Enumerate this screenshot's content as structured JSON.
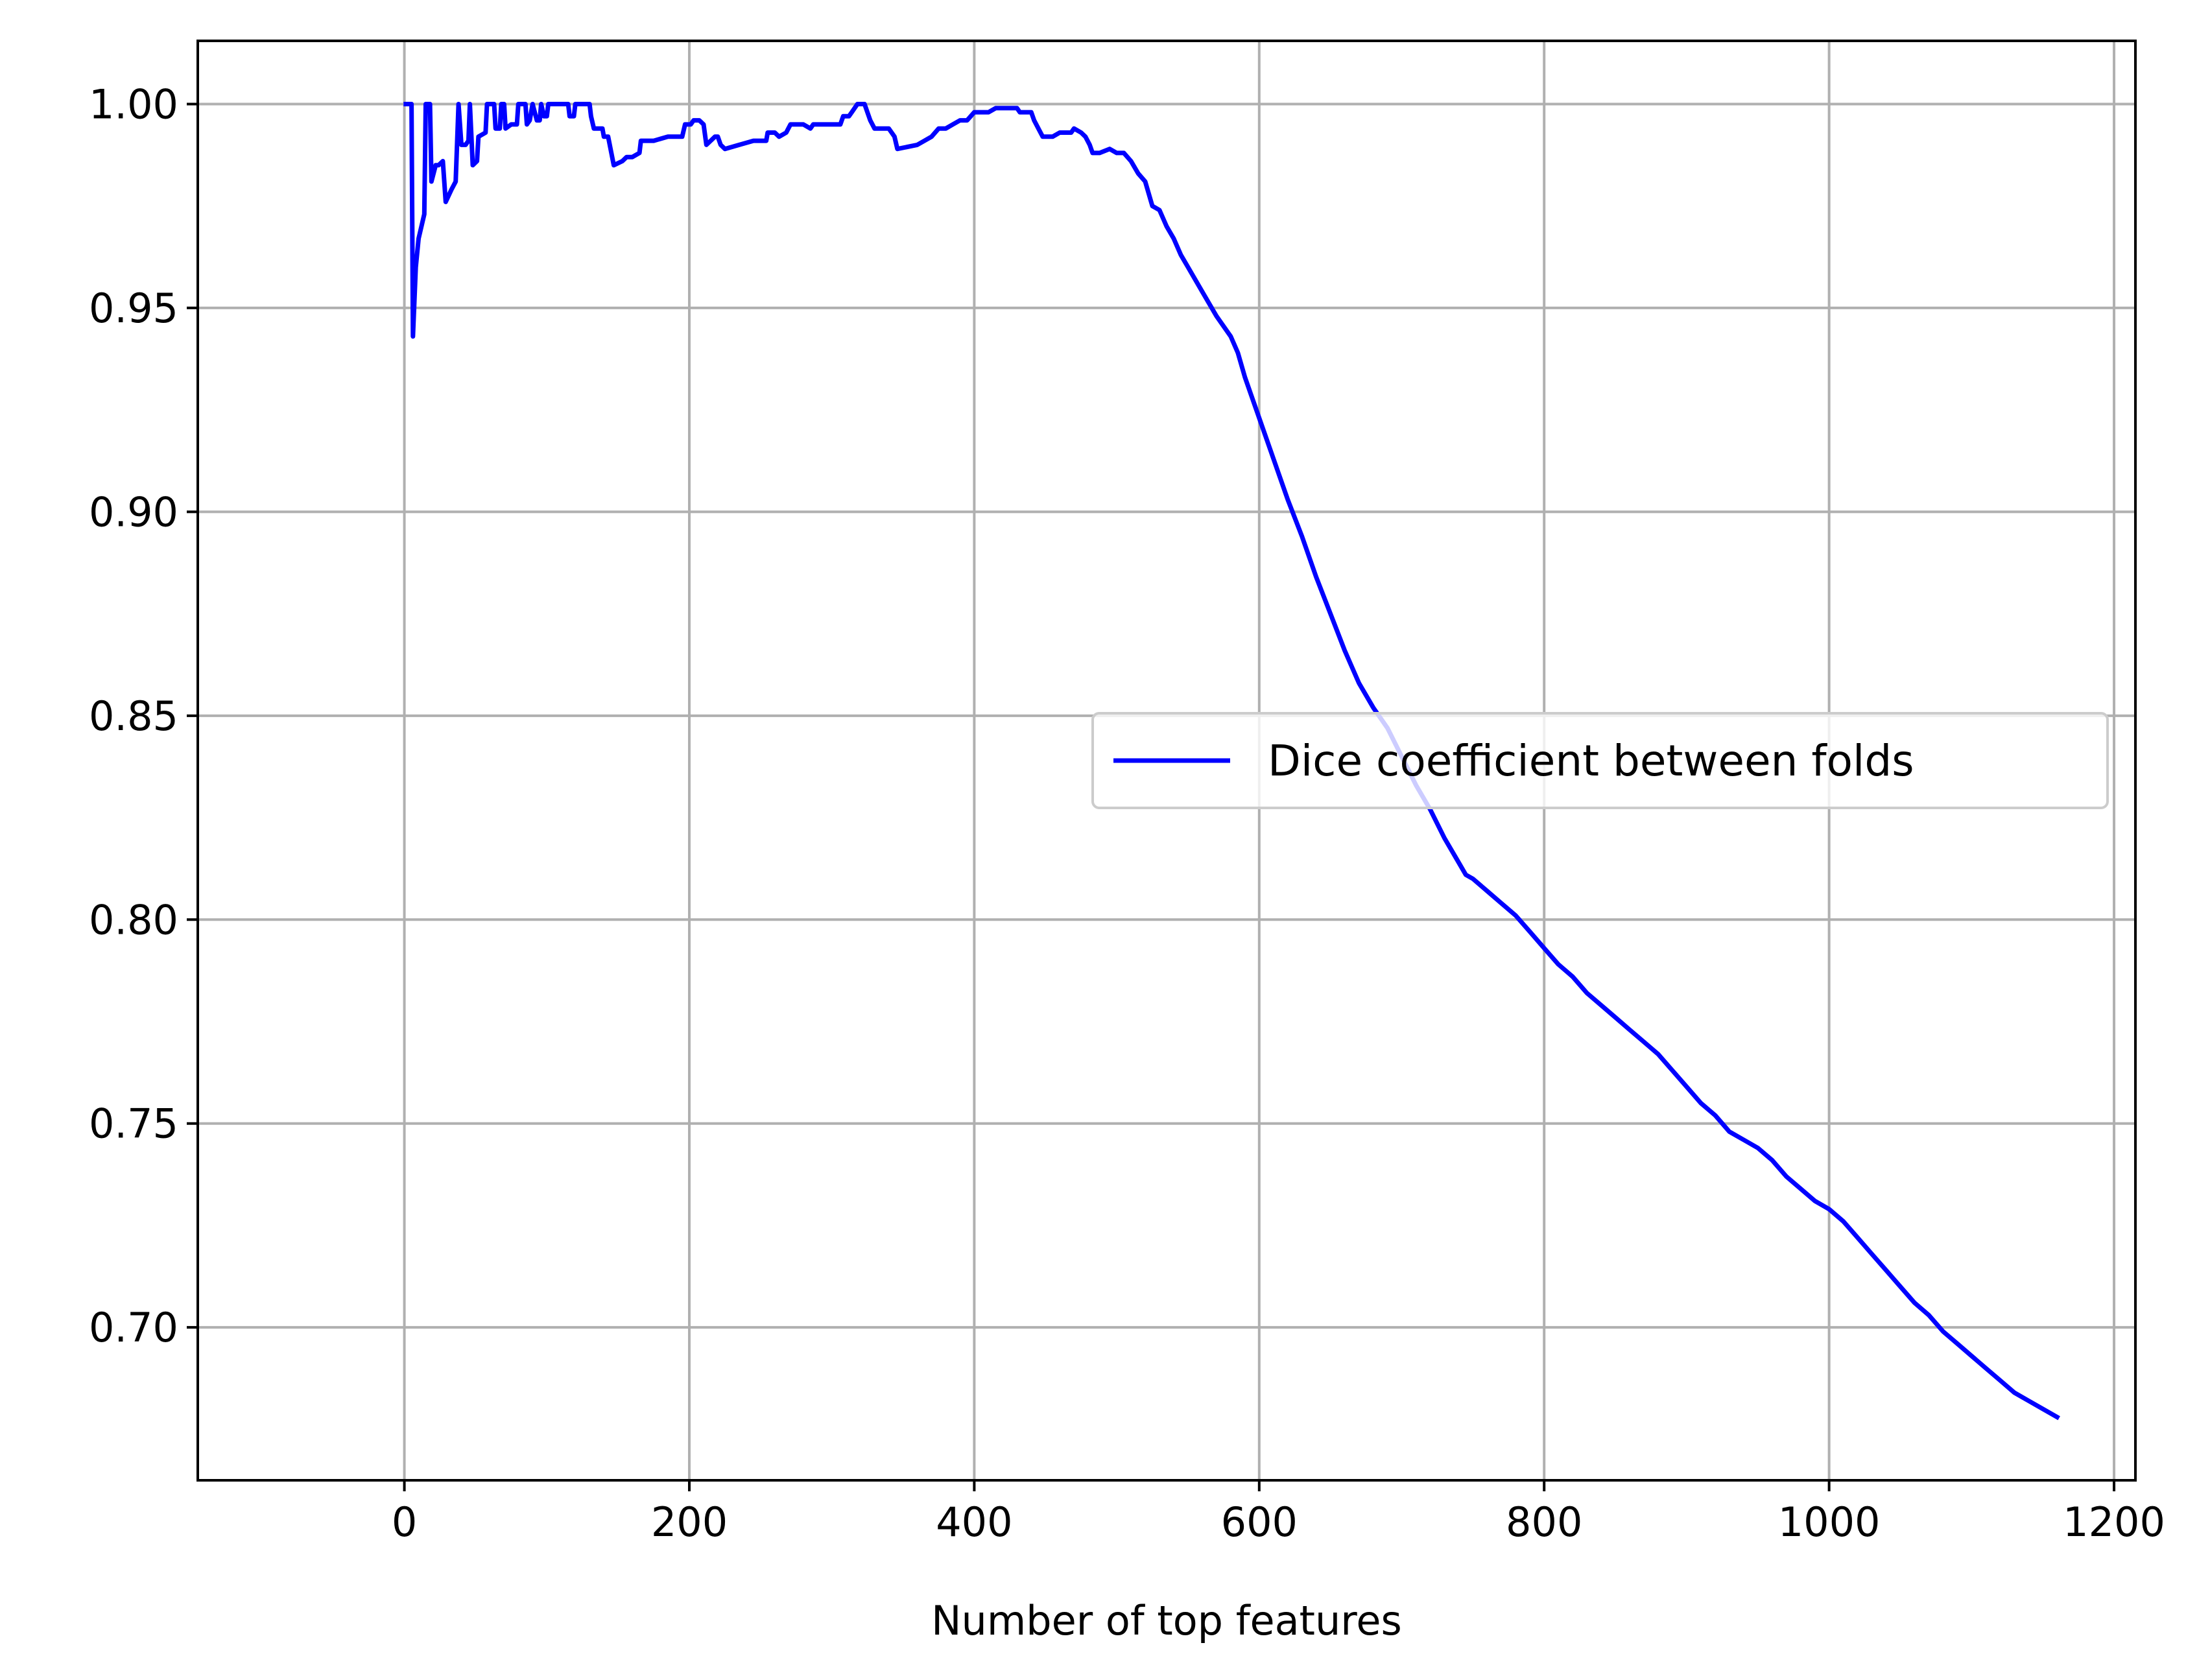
{
  "chart_data": {
    "type": "line",
    "title": "",
    "xlabel": "Number of top features",
    "ylabel": "",
    "xlim": [
      -145,
      1215
    ],
    "ylim": [
      0.6625,
      1.0155
    ],
    "grid": true,
    "legend_position": "center-right",
    "x_ticks": [
      0,
      200,
      400,
      600,
      800,
      1000,
      1200
    ],
    "x_tick_labels": [
      "0",
      "200",
      "400",
      "600",
      "800",
      "1000",
      "1200"
    ],
    "y_ticks": [
      0.7,
      0.75,
      0.8,
      0.85,
      0.9,
      0.95,
      1.0
    ],
    "y_tick_labels": [
      "0.70",
      "0.75",
      "0.80",
      "0.85",
      "0.90",
      "0.95",
      "1.00"
    ],
    "colors": {
      "series": "#0000ff",
      "grid": "#b0b0b0",
      "axes": "#000000"
    },
    "series": [
      {
        "name": "Dice coefficient between folds",
        "color": "#0000ff",
        "points": [
          [
            1,
            1.0
          ],
          [
            5,
            1.0
          ],
          [
            6,
            0.943
          ],
          [
            8,
            0.96
          ],
          [
            10,
            0.967
          ],
          [
            14,
            0.973
          ],
          [
            15,
            1.0
          ],
          [
            18,
            1.0
          ],
          [
            19,
            0.981
          ],
          [
            22,
            0.985
          ],
          [
            24,
            0.985
          ],
          [
            27,
            0.986
          ],
          [
            29,
            0.976
          ],
          [
            33,
            0.979
          ],
          [
            36,
            0.981
          ],
          [
            38,
            1.0
          ],
          [
            40,
            0.99
          ],
          [
            43,
            0.99
          ],
          [
            45,
            0.991
          ],
          [
            46,
            1.0
          ],
          [
            48,
            0.985
          ],
          [
            51,
            0.986
          ],
          [
            52,
            0.992
          ],
          [
            57,
            0.993
          ],
          [
            58,
            1.0
          ],
          [
            63,
            1.0
          ],
          [
            64,
            0.994
          ],
          [
            67,
            0.994
          ],
          [
            68,
            1.0
          ],
          [
            70,
            1.0
          ],
          [
            71,
            0.994
          ],
          [
            75,
            0.995
          ],
          [
            79,
            0.995
          ],
          [
            80,
            1.0
          ],
          [
            85,
            1.0
          ],
          [
            86,
            0.995
          ],
          [
            88,
            0.996
          ],
          [
            90,
            1.0
          ],
          [
            93,
            0.996
          ],
          [
            95,
            0.996
          ],
          [
            96,
            1.0
          ],
          [
            98,
            0.997
          ],
          [
            100,
            0.997
          ],
          [
            101,
            1.0
          ],
          [
            110,
            1.0
          ],
          [
            115,
            1.0
          ],
          [
            116,
            0.997
          ],
          [
            119,
            0.997
          ],
          [
            120,
            1.0
          ],
          [
            130,
            1.0
          ],
          [
            131,
            0.997
          ],
          [
            133,
            0.994
          ],
          [
            139,
            0.994
          ],
          [
            140,
            0.992
          ],
          [
            143,
            0.992
          ],
          [
            147,
            0.985
          ],
          [
            153,
            0.986
          ],
          [
            156,
            0.987
          ],
          [
            160,
            0.987
          ],
          [
            165,
            0.988
          ],
          [
            166,
            0.991
          ],
          [
            175,
            0.991
          ],
          [
            185,
            0.992
          ],
          [
            190,
            0.992
          ],
          [
            195,
            0.992
          ],
          [
            197,
            0.995
          ],
          [
            201,
            0.995
          ],
          [
            203,
            0.996
          ],
          [
            205,
            0.996
          ],
          [
            207,
            0.996
          ],
          [
            210,
            0.995
          ],
          [
            212,
            0.99
          ],
          [
            215,
            0.991
          ],
          [
            218,
            0.992
          ],
          [
            220,
            0.992
          ],
          [
            222,
            0.99
          ],
          [
            225,
            0.989
          ],
          [
            235,
            0.99
          ],
          [
            245,
            0.991
          ],
          [
            254,
            0.991
          ],
          [
            255,
            0.993
          ],
          [
            260,
            0.993
          ],
          [
            263,
            0.992
          ],
          [
            268,
            0.993
          ],
          [
            271,
            0.995
          ],
          [
            280,
            0.995
          ],
          [
            285,
            0.994
          ],
          [
            287,
            0.995
          ],
          [
            300,
            0.995
          ],
          [
            306,
            0.995
          ],
          [
            308,
            0.997
          ],
          [
            312,
            0.997
          ],
          [
            314,
            0.998
          ],
          [
            318,
            1.0
          ],
          [
            323,
            1.0
          ],
          [
            325,
            0.998
          ],
          [
            327,
            0.996
          ],
          [
            330,
            0.994
          ],
          [
            340,
            0.994
          ],
          [
            344,
            0.992
          ],
          [
            346,
            0.989
          ],
          [
            360,
            0.99
          ],
          [
            365,
            0.991
          ],
          [
            370,
            0.992
          ],
          [
            375,
            0.994
          ],
          [
            380,
            0.994
          ],
          [
            385,
            0.995
          ],
          [
            390,
            0.996
          ],
          [
            395,
            0.996
          ],
          [
            400,
            0.998
          ],
          [
            404,
            0.998
          ],
          [
            410,
            0.998
          ],
          [
            415,
            0.999
          ],
          [
            430,
            0.999
          ],
          [
            432,
            0.998
          ],
          [
            440,
            0.998
          ],
          [
            442,
            0.996
          ],
          [
            445,
            0.994
          ],
          [
            448,
            0.992
          ],
          [
            455,
            0.992
          ],
          [
            460,
            0.993
          ],
          [
            468,
            0.993
          ],
          [
            470,
            0.994
          ],
          [
            475,
            0.993
          ],
          [
            478,
            0.992
          ],
          [
            481,
            0.99
          ],
          [
            483,
            0.988
          ],
          [
            488,
            0.988
          ],
          [
            495,
            0.989
          ],
          [
            500,
            0.988
          ],
          [
            505,
            0.988
          ],
          [
            510,
            0.986
          ],
          [
            515,
            0.983
          ],
          [
            520,
            0.981
          ],
          [
            525,
            0.975
          ],
          [
            530,
            0.974
          ],
          [
            535,
            0.97
          ],
          [
            540,
            0.967
          ],
          [
            545,
            0.963
          ],
          [
            550,
            0.96
          ],
          [
            560,
            0.954
          ],
          [
            570,
            0.948
          ],
          [
            580,
            0.943
          ],
          [
            585,
            0.939
          ],
          [
            590,
            0.933
          ],
          [
            600,
            0.923
          ],
          [
            610,
            0.913
          ],
          [
            620,
            0.903
          ],
          [
            630,
            0.894
          ],
          [
            640,
            0.884
          ],
          [
            650,
            0.875
          ],
          [
            660,
            0.866
          ],
          [
            670,
            0.858
          ],
          [
            680,
            0.852
          ],
          [
            690,
            0.847
          ],
          [
            700,
            0.84
          ],
          [
            710,
            0.833
          ],
          [
            720,
            0.827
          ],
          [
            730,
            0.82
          ],
          [
            740,
            0.814
          ],
          [
            745,
            0.811
          ],
          [
            750,
            0.81
          ],
          [
            760,
            0.807
          ],
          [
            770,
            0.804
          ],
          [
            780,
            0.801
          ],
          [
            790,
            0.797
          ],
          [
            800,
            0.793
          ],
          [
            810,
            0.789
          ],
          [
            820,
            0.786
          ],
          [
            830,
            0.782
          ],
          [
            840,
            0.779
          ],
          [
            850,
            0.776
          ],
          [
            860,
            0.773
          ],
          [
            870,
            0.77
          ],
          [
            880,
            0.767
          ],
          [
            890,
            0.763
          ],
          [
            900,
            0.759
          ],
          [
            910,
            0.755
          ],
          [
            920,
            0.752
          ],
          [
            930,
            0.748
          ],
          [
            940,
            0.746
          ],
          [
            950,
            0.744
          ],
          [
            960,
            0.741
          ],
          [
            970,
            0.737
          ],
          [
            980,
            0.734
          ],
          [
            990,
            0.731
          ],
          [
            1000,
            0.729
          ],
          [
            1010,
            0.726
          ],
          [
            1020,
            0.722
          ],
          [
            1030,
            0.718
          ],
          [
            1040,
            0.714
          ],
          [
            1050,
            0.71
          ],
          [
            1060,
            0.706
          ],
          [
            1070,
            0.703
          ],
          [
            1080,
            0.699
          ],
          [
            1090,
            0.696
          ],
          [
            1100,
            0.693
          ],
          [
            1110,
            0.69
          ],
          [
            1120,
            0.687
          ],
          [
            1130,
            0.684
          ],
          [
            1140,
            0.682
          ],
          [
            1150,
            0.68
          ],
          [
            1160,
            0.678
          ]
        ]
      }
    ]
  }
}
